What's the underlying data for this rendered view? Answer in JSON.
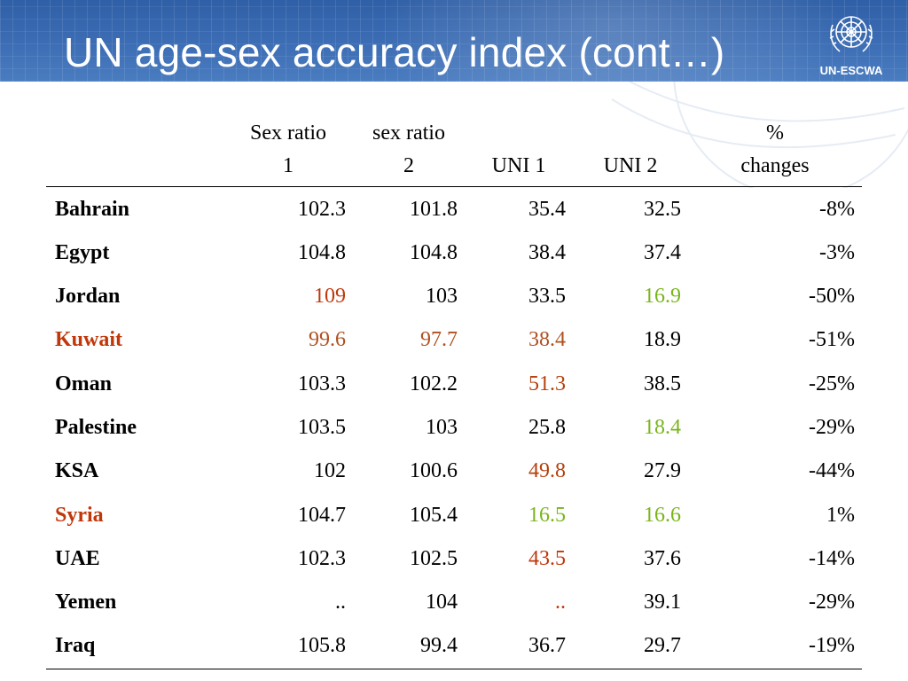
{
  "slide": {
    "title": "UN age-sex accuracy index (cont…)",
    "logo_text": "UN-ESCWA"
  },
  "table": {
    "headers": [
      {
        "lines": [
          "",
          ""
        ]
      },
      {
        "lines": [
          "Sex ratio",
          "1"
        ]
      },
      {
        "lines": [
          "sex ratio",
          "2"
        ]
      },
      {
        "lines": [
          "",
          "UNI 1"
        ]
      },
      {
        "lines": [
          "",
          "UNI 2"
        ]
      },
      {
        "lines": [
          "%",
          "changes"
        ]
      }
    ],
    "rows": [
      {
        "country": "Bahrain",
        "sr1": "102.3",
        "sr2": "101.8",
        "uni1": "35.4",
        "uni2": "32.5",
        "change": "-8%"
      },
      {
        "country": "Egypt",
        "sr1": "104.8",
        "sr2": "104.8",
        "uni1": "38.4",
        "uni2": "37.4",
        "change": "-3%"
      },
      {
        "country": "Jordan",
        "sr1": "109",
        "sr2": "103",
        "uni1": "33.5",
        "uni2": "16.9",
        "change": "-50%"
      },
      {
        "country": "Kuwait",
        "sr1": "99.6",
        "sr2": "97.7",
        "uni1": "38.4",
        "uni2": "18.9",
        "change": "-51%"
      },
      {
        "country": "Oman",
        "sr1": "103.3",
        "sr2": "102.2",
        "uni1": "51.3",
        "uni2": "38.5",
        "change": "-25%"
      },
      {
        "country": "Palestine",
        "sr1": "103.5",
        "sr2": "103",
        "uni1": "25.8",
        "uni2": "18.4",
        "change": "-29%"
      },
      {
        "country": "KSA",
        "sr1": "102",
        "sr2": "100.6",
        "uni1": "49.8",
        "uni2": "27.9",
        "change": "-44%"
      },
      {
        "country": "Syria",
        "sr1": "104.7",
        "sr2": "105.4",
        "uni1": "16.5",
        "uni2": "16.6",
        "change": "1%"
      },
      {
        "country": "UAE",
        "sr1": "102.3",
        "sr2": "102.5",
        "uni1": "43.5",
        "uni2": "37.6",
        "change": "-14%"
      },
      {
        "country": "Yemen",
        "sr1": "..",
        "sr2": "104",
        "uni1": "..",
        "uni2": "39.1",
        "change": "-29%"
      },
      {
        "country": "Iraq",
        "sr1": "105.8",
        "sr2": "99.4",
        "uni1": "36.7",
        "uni2": "29.7",
        "change": "-19%"
      }
    ]
  },
  "colors": {
    "banner": "#3d6eb5",
    "highlight_red": "#c0370a",
    "highlight_green": "#79b51c"
  }
}
